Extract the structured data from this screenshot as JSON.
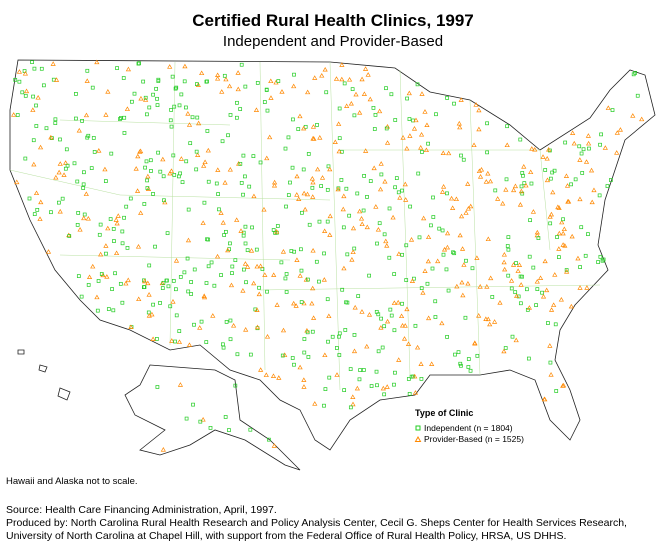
{
  "header": {
    "title": "Certified Rural Health Clinics, 1997",
    "subtitle": "Independent and Provider-Based"
  },
  "legend": {
    "title": "Type of Clinic",
    "items": [
      "Independent (n = 1804)",
      "Provider-Based (n = 1525)"
    ]
  },
  "note": "Hawaii and Alaska not to scale.",
  "footer": {
    "lines": [
      "Source: Health Care Financing Administration, April, 1997.",
      "Produced by: North Carolina Rural Health Research and Policy Analysis Center, Cecil G. Sheps Center for Health Services Research,",
      "University of North Carolina at Chapel Hill, with support from the Federal Office of Rural Health Policy, HRSA, US DHHS."
    ]
  }
}
